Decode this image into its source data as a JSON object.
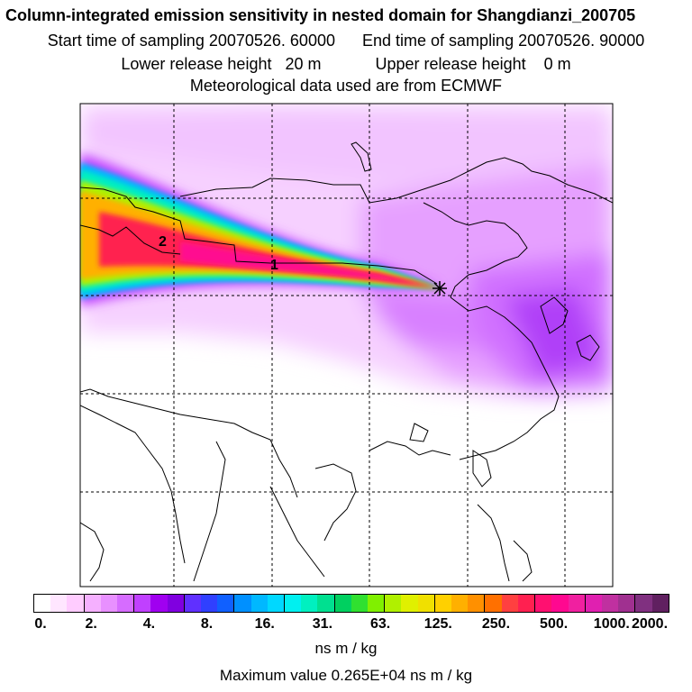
{
  "header": {
    "title": "Column-integrated emission sensitivity in nested domain for Shangdianzi_200705",
    "start_time": "Start time of sampling 20070526. 60000",
    "end_time": "End time of sampling 20070526. 90000",
    "lower_release": "Lower release height   20 m",
    "upper_release": "Upper release height    0 m",
    "meteo": "Meteorological data used are from ECMWF"
  },
  "map": {
    "markers": [
      {
        "label": "1"
      },
      {
        "label": "2"
      }
    ],
    "receptor_symbol": "star-icon"
  },
  "legend": {
    "tick_labels": [
      "0.",
      "2.",
      "4.",
      "8.",
      "16.",
      "31.",
      "63.",
      "125.",
      "250.",
      "500.",
      "1000.",
      "2000."
    ],
    "colors": [
      "#ffffff",
      "#ffe6ff",
      "#ffccff",
      "#f5b0ff",
      "#e890ff",
      "#d66cff",
      "#c040ff",
      "#a000f0",
      "#8000e0",
      "#6030ff",
      "#3040ff",
      "#1060ff",
      "#0090ff",
      "#00b8ff",
      "#00d8ff",
      "#00f0f0",
      "#00f0c0",
      "#00e090",
      "#00d060",
      "#30e030",
      "#80f000",
      "#b0f000",
      "#e0f000",
      "#f0e000",
      "#ffd000",
      "#ffb000",
      "#ff9000",
      "#ff7000",
      "#ff4040",
      "#ff2050",
      "#ff1070",
      "#ff0890",
      "#f020a0",
      "#e020b0",
      "#c030a0",
      "#a03090",
      "#803080",
      "#602060"
    ],
    "units": "ns m / kg",
    "max_value": "Maximum value  0.265E+04 ns m / kg"
  }
}
